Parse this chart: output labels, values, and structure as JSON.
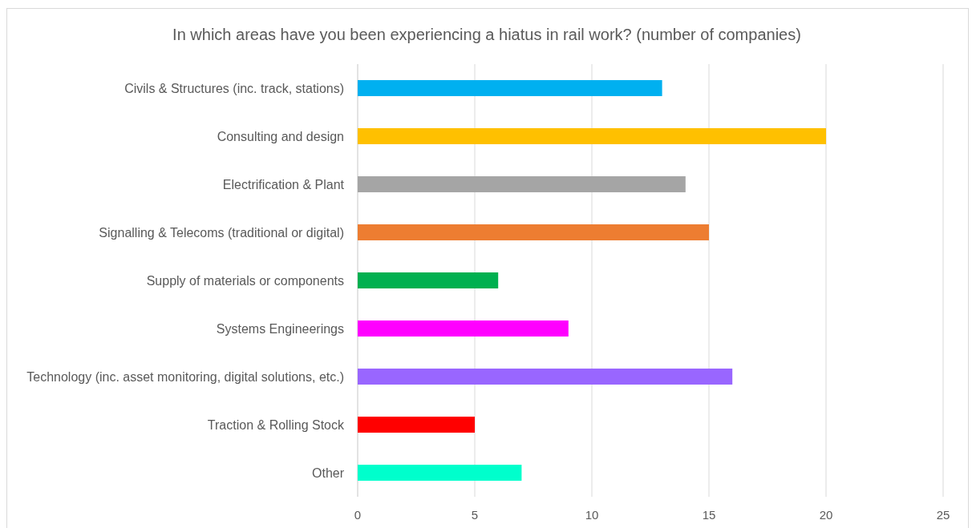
{
  "chart_data": {
    "type": "bar",
    "orientation": "horizontal",
    "title": "In which areas have you been experiencing a hiatus in rail work? (number of companies)",
    "categories": [
      "Civils & Structures (inc. track, stations)",
      "Consulting and design",
      "Electrification & Plant",
      "Signalling & Telecoms (traditional or digital)",
      "Supply of materials or components",
      "Systems Engineerings",
      "Technology (inc. asset monitoring, digital solutions, etc.)",
      "Traction & Rolling Stock",
      "Other"
    ],
    "values": [
      13,
      20,
      14,
      15,
      6,
      9,
      16,
      5,
      7
    ],
    "colors": [
      "#00b0f0",
      "#ffc000",
      "#a5a5a5",
      "#ed7d31",
      "#00b050",
      "#ff00ff",
      "#9966ff",
      "#ff0000",
      "#00ffcc"
    ],
    "xlim": [
      0,
      25
    ],
    "xticks": [
      0,
      5,
      10,
      15,
      20,
      25
    ],
    "grid": "x"
  }
}
